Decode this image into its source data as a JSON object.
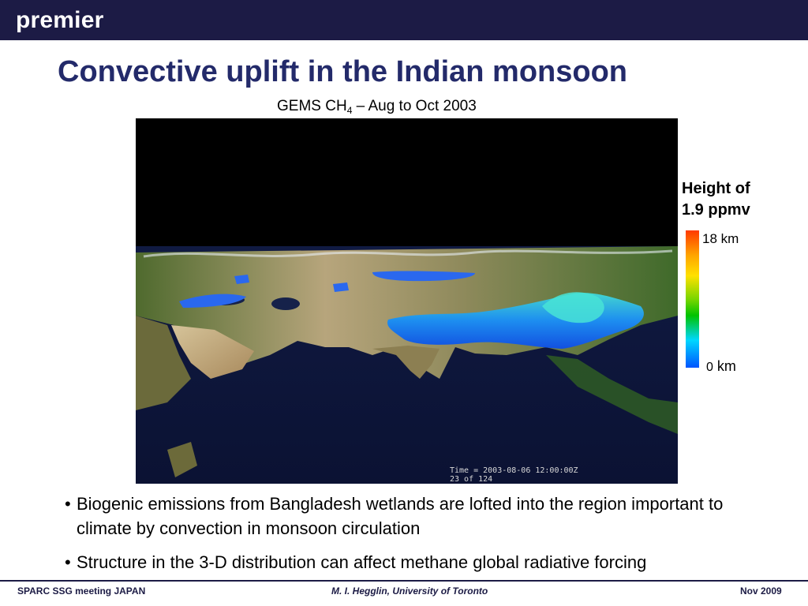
{
  "header": {
    "brand": "premier"
  },
  "slide": {
    "title": "Convective uplift in the Indian monsoon",
    "subtitle_prefix": "GEMS CH",
    "subtitle_sub": "4",
    "subtitle_suffix": " – Aug to Oct 2003"
  },
  "visualization": {
    "time_label": "Time = 2003-08-06 12:00:00Z",
    "frame_label": "23 of 124"
  },
  "legend": {
    "title_line1": "Height of",
    "title_line2": "1.9 ppmv",
    "top_value": "18",
    "top_unit": "km",
    "bottom_value": "0",
    "bottom_unit": "km",
    "colors": [
      "#ff3a00",
      "#ffa400",
      "#ffe100",
      "#00c300",
      "#00d7ff",
      "#0055ff"
    ]
  },
  "bullets": [
    {
      "marker": "•",
      "text": "Biogenic emissions from Bangladesh wetlands are lofted into the region important to climate by convection in monsoon circulation"
    },
    {
      "marker": "•",
      "text": "Structure in the 3-D distribution can affect methane global radiative forcing"
    }
  ],
  "footer": {
    "left": "SPARC SSG meeting JAPAN",
    "center": "M. I. Hegglin, University of Toronto",
    "right": "Nov 2009"
  }
}
